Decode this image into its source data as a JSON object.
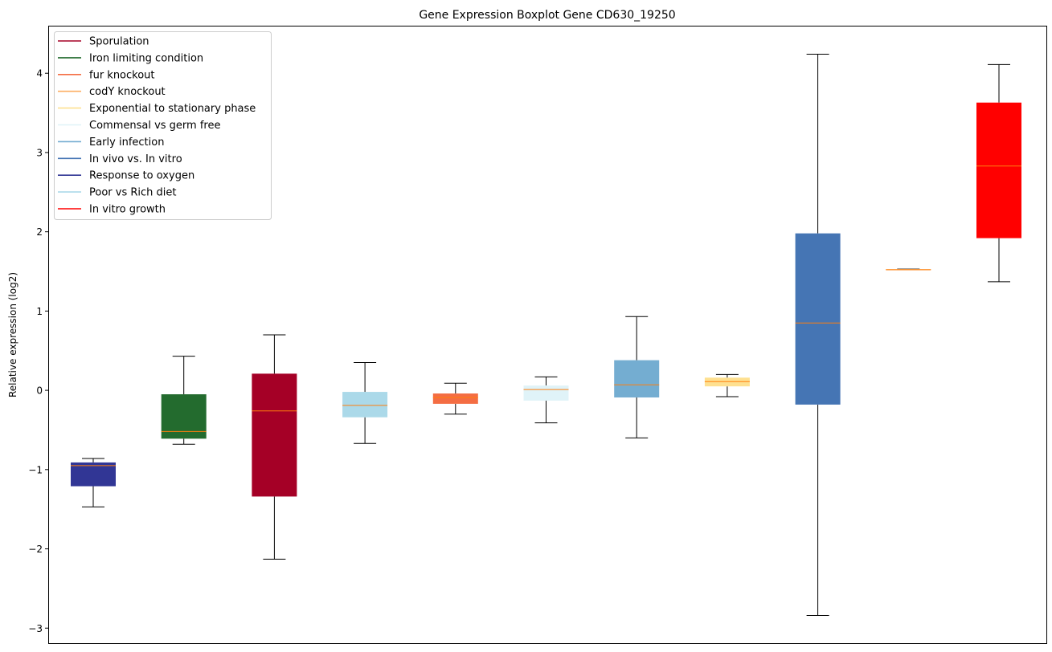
{
  "chart_data": {
    "type": "boxplot",
    "title": "Gene Expression Boxplot Gene CD630_19250",
    "xlabel": "",
    "ylabel": "Relative expression (log2)",
    "ylim": [
      -3.2,
      4.6
    ],
    "yticks": [
      -3,
      -2,
      -1,
      0,
      1,
      2,
      3,
      4
    ],
    "legend_position": "top-left",
    "legend": [
      {
        "label": "Sporulation",
        "color": "#a50026"
      },
      {
        "label": "Iron limiting condition",
        "color": "#236b2e"
      },
      {
        "label": "fur knockout",
        "color": "#f46d43"
      },
      {
        "label": "codY knockout",
        "color": "#fdae61"
      },
      {
        "label": "Exponential to stationary phase",
        "color": "#fee090"
      },
      {
        "label": "Commensal vs germ free",
        "color": "#e0f3f8"
      },
      {
        "label": "Early infection",
        "color": "#74add1"
      },
      {
        "label": "In vivo vs. In vitro",
        "color": "#4575b4"
      },
      {
        "label": "Response to oxygen",
        "color": "#313695"
      },
      {
        "label": "Poor vs Rich diet",
        "color": "#abd9e9"
      },
      {
        "label": "In vitro growth",
        "color": "#ff0000"
      }
    ],
    "median_color": "#ff7f0e",
    "boxes": [
      {
        "name": "Response to oxygen",
        "color": "#313695",
        "whislo": -1.47,
        "q1": -1.21,
        "med": -0.95,
        "q3": -0.91,
        "whishi": -0.86
      },
      {
        "name": "Iron limiting condition",
        "color": "#236b2e",
        "whislo": -0.68,
        "q1": -0.61,
        "med": -0.52,
        "q3": -0.05,
        "whishi": 0.43
      },
      {
        "name": "Sporulation",
        "color": "#a50026",
        "whislo": -2.13,
        "q1": -1.34,
        "med": -0.26,
        "q3": 0.21,
        "whishi": 0.7
      },
      {
        "name": "Poor vs Rich diet",
        "color": "#abd9e9",
        "whislo": -0.67,
        "q1": -0.34,
        "med": -0.19,
        "q3": -0.02,
        "whishi": 0.35
      },
      {
        "name": "fur knockout",
        "color": "#f46d43",
        "whislo": -0.3,
        "q1": -0.17,
        "med": -0.09,
        "q3": -0.04,
        "whishi": 0.09
      },
      {
        "name": "Commensal vs germ free",
        "color": "#e0f3f8",
        "whislo": -0.41,
        "q1": -0.13,
        "med": 0.01,
        "q3": 0.06,
        "whishi": 0.17
      },
      {
        "name": "Early infection",
        "color": "#74add1",
        "whislo": -0.6,
        "q1": -0.09,
        "med": 0.07,
        "q3": 0.38,
        "whishi": 0.93
      },
      {
        "name": "Exponential to stationary phase",
        "color": "#fee090",
        "whislo": -0.08,
        "q1": 0.05,
        "med": 0.11,
        "q3": 0.16,
        "whishi": 0.2
      },
      {
        "name": "In vivo vs. In vitro",
        "color": "#4575b4",
        "whislo": -2.84,
        "q1": -0.18,
        "med": 0.85,
        "q3": 1.98,
        "whishi": 4.24
      },
      {
        "name": "codY knockout",
        "color": "#fdae61",
        "whislo": 1.52,
        "q1": 1.52,
        "med": 1.52,
        "q3": 1.53,
        "whishi": 1.53
      },
      {
        "name": "In vitro growth",
        "color": "#ff0000",
        "whislo": 1.37,
        "q1": 1.92,
        "med": 2.83,
        "q3": 3.63,
        "whishi": 4.11
      }
    ]
  }
}
